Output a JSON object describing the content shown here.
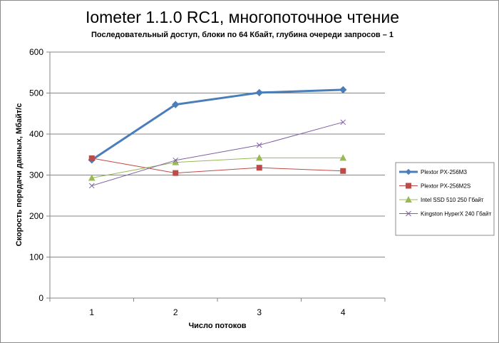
{
  "chart_data": {
    "type": "line",
    "title": "Iometer 1.1.0 RC1, многопоточное чтение",
    "subtitle": "Последовательный  доступ, блоки  по 64 Кбайт,  глубина очереди запросов – 1",
    "xlabel": "Число  потоков",
    "ylabel": "Скорость  передачи данных, Мбайт/с",
    "categories": [
      "1",
      "2",
      "3",
      "4"
    ],
    "ylim": [
      0,
      600
    ],
    "yticks": [
      0,
      100,
      200,
      300,
      400,
      500,
      600
    ],
    "grid": true,
    "legend_position": "right",
    "series": [
      {
        "name": "Plextor PX-256M3",
        "values": [
          337,
          472,
          501,
          508
        ],
        "color": "#4a7ebb",
        "marker": "diamond",
        "width": 3
      },
      {
        "name": "Plextor PX-256M2S",
        "values": [
          341,
          305,
          318,
          310
        ],
        "color": "#be4b48",
        "marker": "square",
        "width": 1
      },
      {
        "name": "Intel SSD 510 250 Гбайт",
        "values": [
          293,
          331,
          342,
          342
        ],
        "color": "#98b954",
        "marker": "triangle",
        "width": 1
      },
      {
        "name": "Kingston HyperX 240 Гбайт",
        "values": [
          274,
          336,
          373,
          429
        ],
        "color": "#7d60a0",
        "marker": "x",
        "width": 1
      }
    ]
  }
}
